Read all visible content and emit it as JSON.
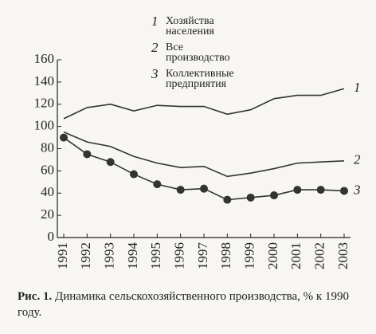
{
  "chart_data": {
    "type": "line",
    "categories": [
      "1991",
      "1992",
      "1993",
      "1994",
      "1995",
      "1996",
      "1997",
      "1998",
      "1999",
      "2000",
      "2001",
      "2002",
      "2003"
    ],
    "series": [
      {
        "key": "1",
        "name": "Хозяйства населения",
        "color": "#333333",
        "marker": false,
        "values": [
          107,
          117,
          120,
          114,
          119,
          118,
          118,
          111,
          115,
          125,
          128,
          128,
          134
        ]
      },
      {
        "key": "2",
        "name": "Все производство",
        "color": "#333333",
        "marker": false,
        "values": [
          95,
          86,
          82,
          73,
          67,
          63,
          64,
          55,
          58,
          62,
          67,
          68,
          69
        ]
      },
      {
        "key": "3",
        "name": "Коллективные предприятия",
        "color": "#333333",
        "marker": true,
        "values": [
          90,
          75,
          68,
          57,
          48,
          43,
          44,
          34,
          36,
          38,
          43,
          43,
          42
        ]
      }
    ],
    "ylim": [
      0,
      160
    ],
    "yticks": [
      0,
      20,
      40,
      60,
      80,
      100,
      120,
      140,
      160
    ],
    "figure_label": "Рис. 1.",
    "caption": "Динамика сельскохозяйственного производства, % к 1990 году."
  }
}
